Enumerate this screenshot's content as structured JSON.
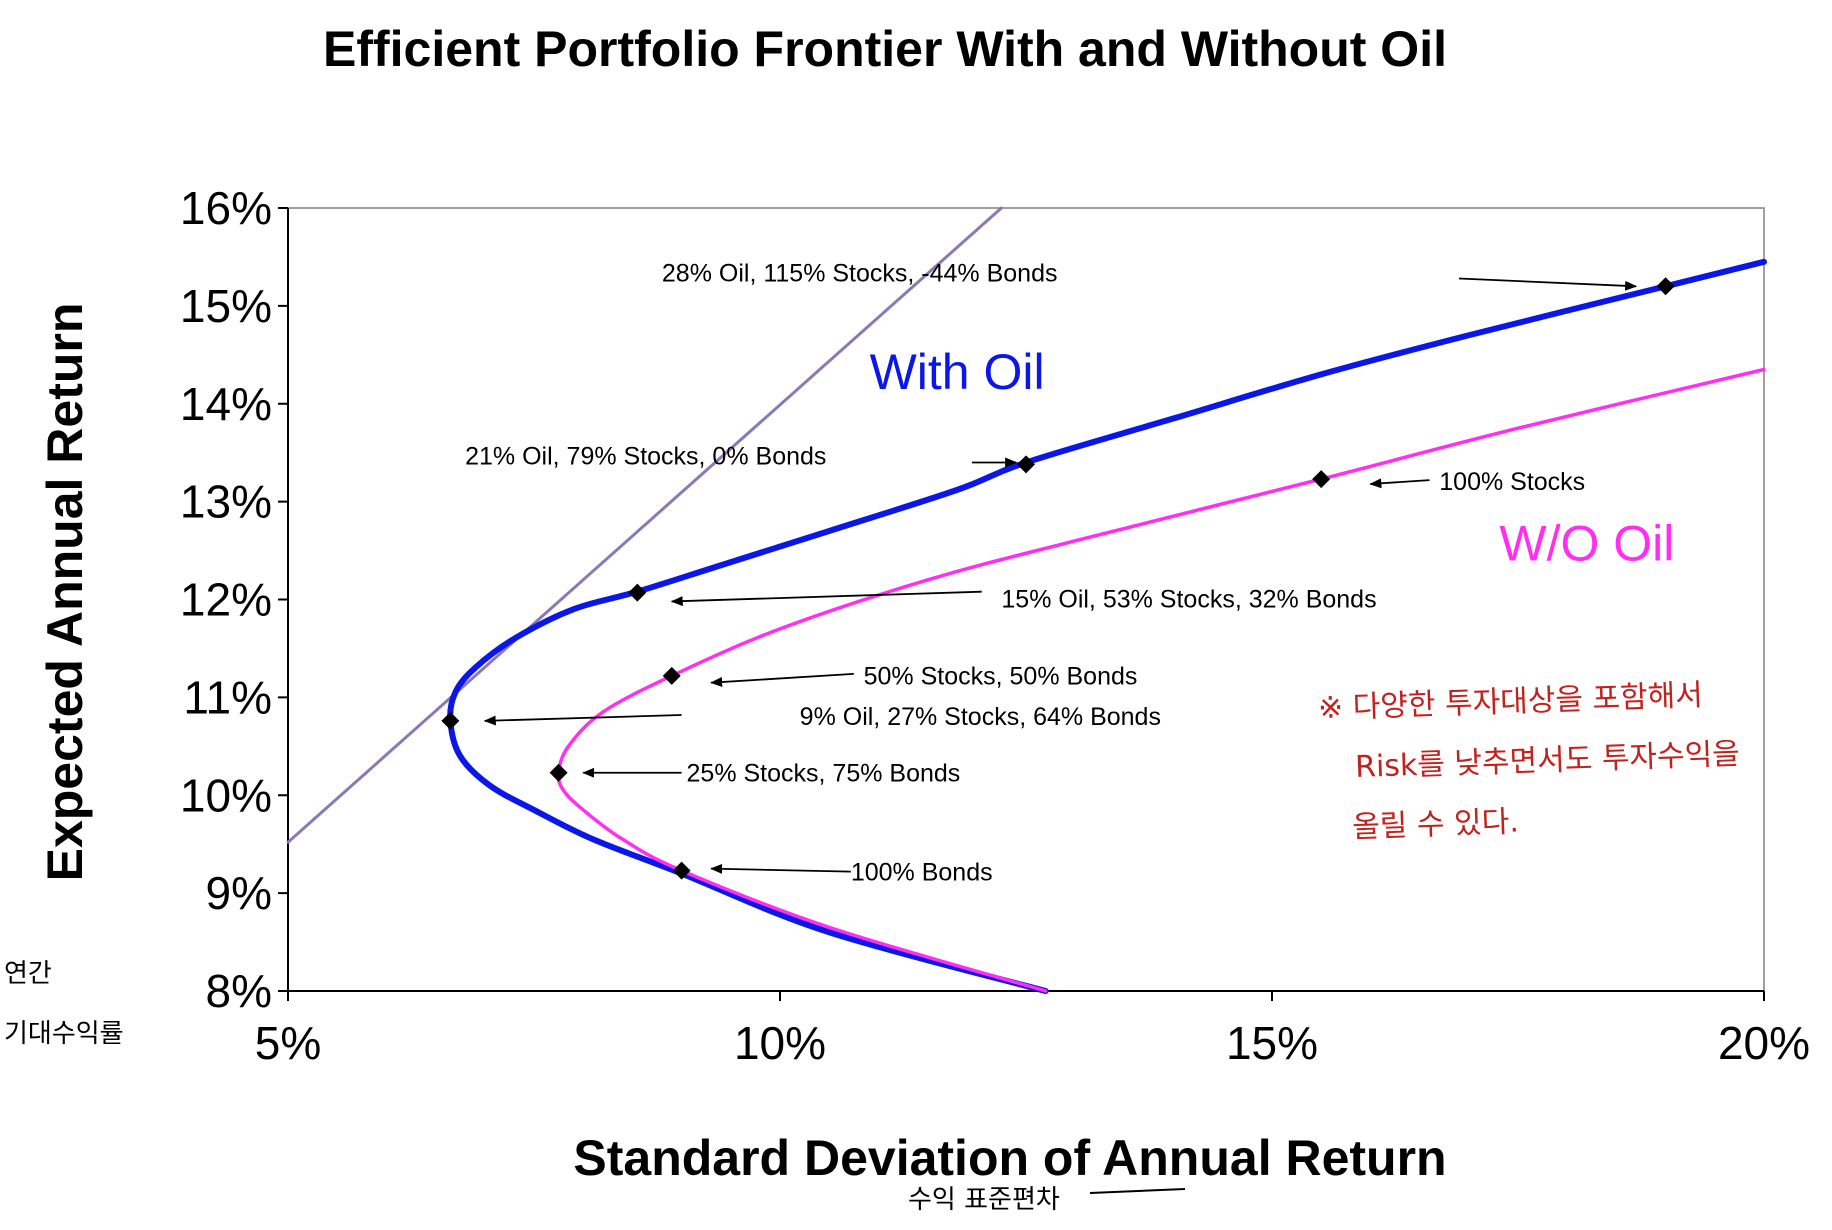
{
  "chart_data": {
    "type": "line",
    "title": "Efficient Portfolio Frontier With and Without Oil",
    "xlabel": "Standard Deviation of Annual Return",
    "ylabel": "Expected Annual Return",
    "xlim": [
      5,
      20
    ],
    "ylim": [
      8,
      16
    ],
    "x_ticks": [
      "5%",
      "10%",
      "15%",
      "20%"
    ],
    "y_ticks": [
      "8%",
      "9%",
      "10%",
      "11%",
      "12%",
      "13%",
      "14%",
      "15%",
      "16%"
    ],
    "grid": false,
    "series": [
      {
        "name": "With Oil",
        "color": "#0a17e6",
        "x": [
          12.7,
          10.5,
          9.0,
          8.1,
          7.5,
          7.05,
          6.75,
          6.65,
          6.7,
          6.9,
          7.3,
          7.9,
          8.55,
          9.4,
          10.5,
          11.8,
          12.5,
          14.0,
          15.5,
          17.0,
          19.0,
          20.0
        ],
        "y": [
          8.0,
          8.6,
          9.2,
          9.55,
          9.85,
          10.1,
          10.4,
          10.76,
          11.05,
          11.3,
          11.6,
          11.9,
          12.08,
          12.35,
          12.7,
          13.12,
          13.4,
          13.85,
          14.3,
          14.7,
          15.2,
          15.45
        ]
      },
      {
        "name": "W/O Oil",
        "color": "#ff2ef0",
        "x": [
          12.7,
          10.5,
          9.0,
          8.4,
          8.0,
          7.8,
          7.75,
          7.85,
          8.2,
          8.9,
          10.0,
          11.5,
          13.0,
          15.5,
          17.5,
          20.0
        ],
        "y": [
          8.0,
          8.65,
          9.23,
          9.55,
          9.85,
          10.05,
          10.23,
          10.5,
          10.85,
          11.22,
          11.7,
          12.2,
          12.6,
          13.23,
          13.75,
          14.35
        ]
      },
      {
        "name": "",
        "color": "#8a79b4",
        "x": [
          5.0,
          12.25
        ],
        "y": [
          9.52,
          16.0
        ]
      }
    ],
    "markers": [
      {
        "x": 19.0,
        "y": 15.2
      },
      {
        "x": 12.5,
        "y": 13.38
      },
      {
        "x": 8.55,
        "y": 12.07
      },
      {
        "x": 6.65,
        "y": 10.76
      },
      {
        "x": 15.5,
        "y": 13.23
      },
      {
        "x": 8.9,
        "y": 11.22
      },
      {
        "x": 7.75,
        "y": 10.23
      },
      {
        "x": 9.0,
        "y": 9.23
      }
    ],
    "annotations": [
      {
        "text": "28% Oil, 115% Stocks, -44% Bonds",
        "tx": 8.8,
        "ty": 15.25,
        "anchor": "start",
        "ax1": 16.9,
        "ay1": 15.28,
        "ax2": 18.7,
        "ay2": 15.2
      },
      {
        "text": "21% Oil, 79% Stocks, 0% Bonds",
        "tx": 6.8,
        "ty": 13.38,
        "anchor": "start",
        "ax1": 11.95,
        "ay1": 13.4,
        "ax2": 12.4,
        "ay2": 13.4
      },
      {
        "text": "15% Oil, 53% Stocks, 32% Bonds",
        "tx": 12.25,
        "ty": 11.92,
        "anchor": "start",
        "ax1": 12.05,
        "ay1": 12.08,
        "ax2": 8.9,
        "ay2": 11.98
      },
      {
        "text": "50% Stocks, 50% Bonds",
        "tx": 10.85,
        "ty": 11.13,
        "anchor": "start",
        "ax1": 10.75,
        "ay1": 11.24,
        "ax2": 9.3,
        "ay2": 11.15
      },
      {
        "text": "9% Oil, 27% Stocks, 64% Bonds",
        "tx": 10.2,
        "ty": 10.72,
        "anchor": "start",
        "ax1": 9.0,
        "ay1": 10.82,
        "ax2": 7.0,
        "ay2": 10.76
      },
      {
        "text": "25% Stocks, 75% Bonds",
        "tx": 9.05,
        "ty": 10.14,
        "anchor": "start",
        "ax1": 9.0,
        "ay1": 10.23,
        "ax2": 8.0,
        "ay2": 10.23
      },
      {
        "text": "100% Bonds",
        "tx": 10.72,
        "ty": 9.13,
        "anchor": "start",
        "ax1": 10.72,
        "ay1": 9.22,
        "ax2": 9.3,
        "ay2": 9.25
      },
      {
        "text": "100% Stocks",
        "tx": 16.7,
        "ty": 13.12,
        "anchor": "start",
        "ax1": 16.6,
        "ay1": 13.22,
        "ax2": 16.0,
        "ay2": 13.18
      }
    ],
    "series_labels": [
      {
        "text": "With Oil",
        "x": 11.8,
        "y": 14.15,
        "color": "#0a17e6"
      },
      {
        "text": "W/O Oil",
        "x": 18.2,
        "y": 12.4,
        "color": "#ff2ef0"
      }
    ]
  },
  "handwritten": {
    "note_lines": [
      "※ 다양한 투자대상을 포함해서",
      "Risk를 낮추면서도 투자수익을",
      "올릴 수 있다."
    ],
    "y_scribble_lines": [
      "연간",
      "기대수익률"
    ],
    "x_scribble": "수익 표준편차"
  }
}
